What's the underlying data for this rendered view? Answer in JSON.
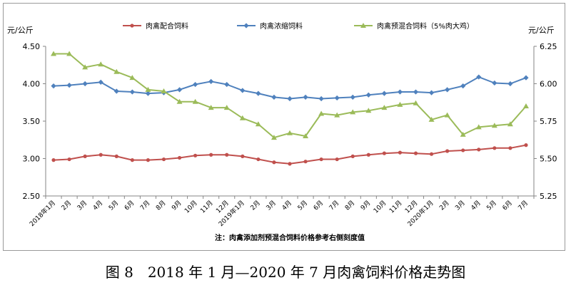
{
  "caption": "图 8　2018 年 1 月—2020 年 7 月肉禽饲料价格走势图",
  "chart_data": {
    "type": "line",
    "left_unit": "元/公斤",
    "right_unit": "元/公斤",
    "note": "注：肉禽添加剂预混合饲料价格参考右侧刻度值",
    "categories": [
      "2018年1月",
      "2月",
      "3月",
      "4月",
      "5月",
      "6月",
      "7月",
      "8月",
      "9月",
      "10月",
      "11月",
      "12月",
      "2019年1月",
      "2月",
      "3月",
      "4月",
      "5月",
      "6月",
      "7月",
      "8月",
      "9月",
      "10月",
      "11月",
      "12月",
      "2020年1月",
      "2月",
      "3月",
      "4月",
      "5月",
      "6月",
      "7月"
    ],
    "left_axis": {
      "min": 2.5,
      "max": 4.5,
      "ticks": [
        "2.50",
        "3.00",
        "3.50",
        "4.00",
        "4.50"
      ],
      "tick_values": [
        2.5,
        3.0,
        3.5,
        4.0,
        4.5
      ]
    },
    "right_axis": {
      "min": 5.25,
      "max": 6.25,
      "ticks": [
        "5.25",
        "5.50",
        "5.75",
        "6.00",
        "6.25"
      ],
      "tick_values": [
        5.25,
        5.5,
        5.75,
        6.0,
        6.25
      ]
    },
    "series": [
      {
        "name": "肉禽配合饲料",
        "axis": "left",
        "color": "#C0504D",
        "marker": "circle",
        "values": [
          2.98,
          2.99,
          3.03,
          3.05,
          3.03,
          2.98,
          2.98,
          2.99,
          3.01,
          3.04,
          3.05,
          3.05,
          3.03,
          2.99,
          2.95,
          2.93,
          2.96,
          2.99,
          2.99,
          3.03,
          3.05,
          3.07,
          3.08,
          3.07,
          3.06,
          3.1,
          3.11,
          3.12,
          3.14,
          3.14,
          3.18
        ]
      },
      {
        "name": "肉禽浓缩饲料",
        "axis": "left",
        "color": "#4F81BD",
        "marker": "diamond",
        "values": [
          3.97,
          3.98,
          4.0,
          4.02,
          3.9,
          3.89,
          3.87,
          3.88,
          3.92,
          3.99,
          4.03,
          3.99,
          3.91,
          3.87,
          3.82,
          3.8,
          3.82,
          3.8,
          3.81,
          3.82,
          3.85,
          3.87,
          3.89,
          3.89,
          3.88,
          3.92,
          3.97,
          4.09,
          4.01,
          4.0,
          4.08
        ]
      },
      {
        "name": "肉禽预混合饲料（5%肉大鸡）",
        "axis": "right",
        "color": "#9BBB59",
        "marker": "triangle",
        "values": [
          6.2,
          6.2,
          6.11,
          6.13,
          6.08,
          6.04,
          5.96,
          5.95,
          5.88,
          5.88,
          5.84,
          5.84,
          5.77,
          5.73,
          5.64,
          5.67,
          5.65,
          5.8,
          5.79,
          5.81,
          5.82,
          5.84,
          5.86,
          5.87,
          5.76,
          5.79,
          5.66,
          5.71,
          5.72,
          5.73,
          5.85
        ]
      }
    ]
  }
}
